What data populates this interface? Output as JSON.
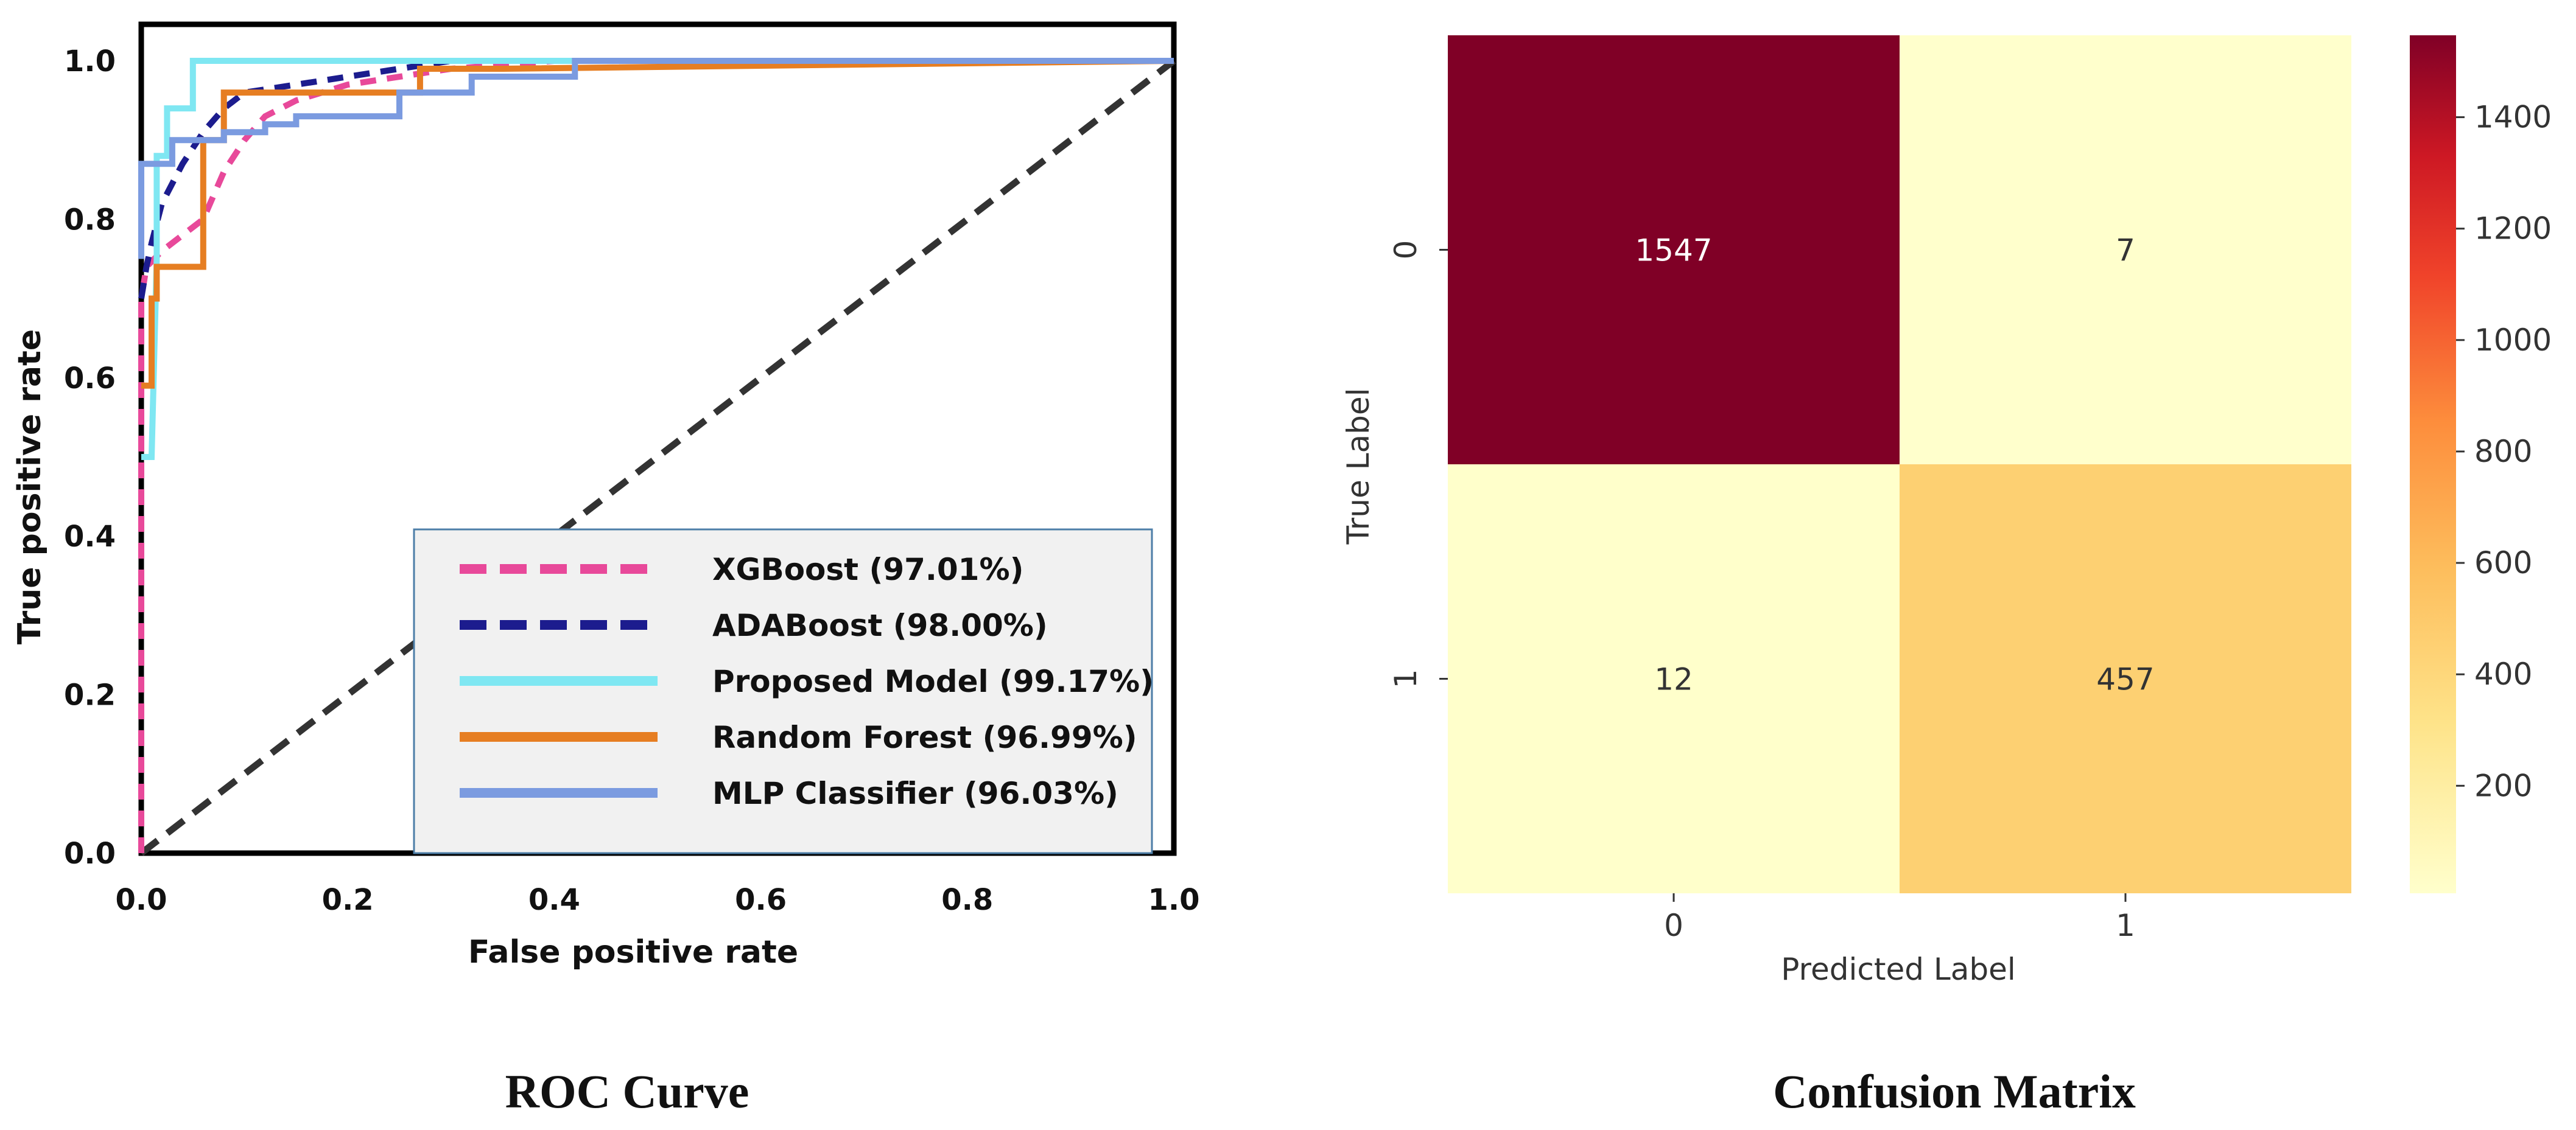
{
  "chart_data": [
    {
      "type": "line",
      "caption": "ROC Curve",
      "xlabel": "False positive rate",
      "ylabel": "True positive rate",
      "xlim": [
        0,
        1.0
      ],
      "ylim": [
        0,
        1.0
      ],
      "xticks": [
        "0.0",
        "0.2",
        "0.4",
        "0.6",
        "0.8",
        "1.0"
      ],
      "yticks": [
        "0.0",
        "0.2",
        "0.4",
        "0.6",
        "0.8",
        "1.0"
      ],
      "xtick_values": [
        0,
        0.2,
        0.4,
        0.6,
        0.8,
        1.0
      ],
      "ytick_values": [
        0,
        0.2,
        0.4,
        0.6,
        0.8,
        1.0
      ],
      "legend_position": "bottom-right",
      "series": [
        {
          "name": "XGBoost (97.01%)",
          "color": "#e8499a",
          "style": "dashed",
          "x": [
            0.0,
            0.0,
            0.005,
            0.02,
            0.04,
            0.06,
            0.08,
            0.1,
            0.12,
            0.15,
            0.2,
            0.3,
            0.4,
            1.0
          ],
          "y": [
            0.0,
            0.7,
            0.74,
            0.76,
            0.78,
            0.8,
            0.86,
            0.9,
            0.93,
            0.95,
            0.97,
            0.99,
            1.0,
            1.0
          ]
        },
        {
          "name": "ADABoost (98.00%)",
          "color": "#1c1c8e",
          "style": "dashed",
          "x": [
            0.0,
            0.005,
            0.01,
            0.02,
            0.04,
            0.06,
            0.08,
            0.1,
            0.15,
            0.2,
            0.25,
            0.3,
            1.0
          ],
          "y": [
            0.7,
            0.74,
            0.77,
            0.82,
            0.87,
            0.91,
            0.94,
            0.96,
            0.97,
            0.98,
            0.99,
            1.0,
            1.0
          ]
        },
        {
          "name": "Proposed Model (99.17%)",
          "color": "#7fe7f2",
          "style": "solid",
          "x": [
            0.0,
            0.01,
            0.015,
            0.015,
            0.025,
            0.025,
            0.05,
            0.05,
            0.3,
            0.3,
            1.0
          ],
          "y": [
            0.5,
            0.5,
            0.75,
            0.88,
            0.88,
            0.94,
            0.94,
            1.0,
            1.0,
            1.0,
            1.0
          ]
        },
        {
          "name": "Random Forest (96.99%)",
          "color": "#e67e22",
          "style": "solid",
          "x": [
            0.0,
            0.01,
            0.01,
            0.015,
            0.015,
            0.03,
            0.03,
            0.06,
            0.06,
            0.08,
            0.08,
            0.27,
            0.27,
            0.35,
            1.0
          ],
          "y": [
            0.59,
            0.59,
            0.7,
            0.7,
            0.74,
            0.74,
            0.74,
            0.74,
            0.9,
            0.9,
            0.96,
            0.96,
            0.99,
            0.99,
            1.0
          ]
        },
        {
          "name": "MLP Classifier (96.03%)",
          "color": "#7b9be0",
          "style": "solid",
          "x": [
            0.0,
            0.0,
            0.03,
            0.03,
            0.08,
            0.08,
            0.12,
            0.12,
            0.15,
            0.15,
            0.25,
            0.25,
            0.32,
            0.32,
            0.42,
            0.42,
            1.0
          ],
          "y": [
            0.75,
            0.87,
            0.87,
            0.9,
            0.9,
            0.91,
            0.91,
            0.92,
            0.92,
            0.93,
            0.93,
            0.96,
            0.96,
            0.98,
            0.98,
            1.0,
            1.0
          ]
        },
        {
          "name": "chance",
          "color": "#333333",
          "style": "dashed",
          "x": [
            0,
            1.0
          ],
          "y": [
            0,
            1.0
          ]
        }
      ]
    },
    {
      "type": "heatmap",
      "caption": "Confusion Matrix",
      "xlabel": "Predicted Label",
      "ylabel": "True Label",
      "x_categories": [
        "0",
        "1"
      ],
      "y_categories": [
        "0",
        "1"
      ],
      "values": [
        [
          1547,
          7
        ],
        [
          12,
          457
        ]
      ],
      "value_labels": [
        [
          "1547",
          "7"
        ],
        [
          "12",
          "457"
        ]
      ],
      "colorbar": {
        "min": 7,
        "max": 1547,
        "ticks": [
          "200",
          "400",
          "600",
          "800",
          "1000",
          "1200",
          "1400"
        ],
        "tick_values": [
          200,
          400,
          600,
          800,
          1000,
          1200,
          1400
        ],
        "colormap": "YlOrRd"
      }
    }
  ]
}
